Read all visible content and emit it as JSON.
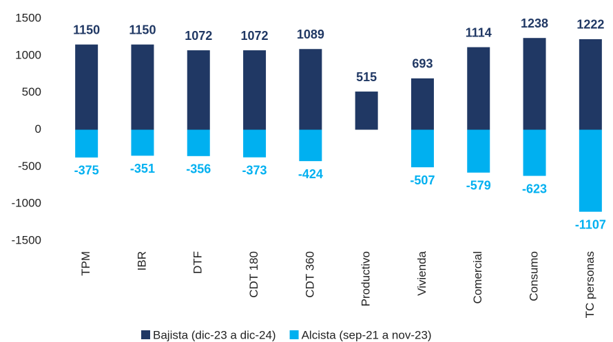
{
  "chart_data": {
    "type": "bar",
    "categories": [
      "TPM",
      "IBR",
      "DTF",
      "CDT 180",
      "CDT 360",
      "Productivo",
      "Vivienda",
      "Comercial",
      "Consumo",
      "TC personas"
    ],
    "series": [
      {
        "name": "Bajista (dic-23 a dic-24)",
        "color": "#203864",
        "values": [
          1150,
          1150,
          1072,
          1072,
          1089,
          515,
          693,
          1114,
          1238,
          1222
        ]
      },
      {
        "name": "Alcista (sep-21 a nov-23)",
        "color": "#00b0f0",
        "values": [
          -375,
          -351,
          -356,
          -373,
          -424,
          null,
          -507,
          -579,
          -623,
          -1107
        ]
      }
    ],
    "ylim": [
      -1500,
      1500
    ],
    "yticks": [
      -1500,
      -1000,
      -500,
      0,
      500,
      1000,
      1500
    ],
    "grid": false,
    "legend": "bottom"
  }
}
